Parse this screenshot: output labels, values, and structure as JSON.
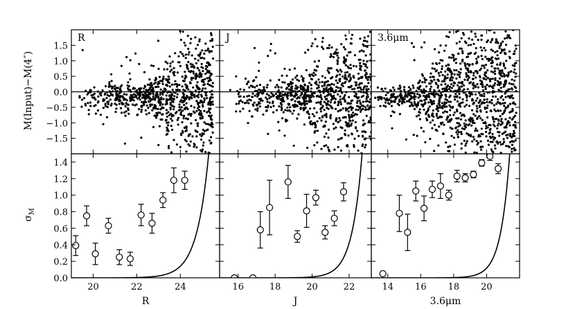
{
  "chart_data": {
    "type": "scatter",
    "top_row": {
      "ylabel": "M(Input)−M(4″)",
      "ylim": [
        -2.0,
        2.0
      ],
      "yticks": [
        "−1.5",
        "−1.0",
        "−0.5",
        "0.0",
        "0.5",
        "1.0",
        "1.5"
      ],
      "ytick_values": [
        -1.5,
        -1.0,
        -0.5,
        0.0,
        0.5,
        1.0,
        1.5
      ],
      "reference_line": 0.0
    },
    "bottom_row": {
      "ylabel": "σM",
      "ylim": [
        0.0,
        1.5
      ],
      "yticks": [
        "0.0",
        "0.2",
        "0.4",
        "0.6",
        "0.8",
        "1.0",
        "1.2",
        "1.4"
      ],
      "ytick_values": [
        0.0,
        0.2,
        0.4,
        0.6,
        0.8,
        1.0,
        1.2,
        1.4
      ]
    },
    "panels": [
      {
        "label": "R",
        "xlabel": "R",
        "xlim": [
          19.0,
          25.8
        ],
        "xticks": [
          "20",
          "22",
          "24"
        ],
        "xtick_values": [
          20,
          22,
          24
        ],
        "scatter_summary": {
          "points": 900,
          "x_range": [
            19.2,
            25.5
          ],
          "bright_spread": 0.25,
          "faint_onset": 22.5,
          "faint_spread": 1.0
        },
        "errorbars": [
          {
            "x": 19.2,
            "y": 0.39,
            "err": 0.12
          },
          {
            "x": 19.7,
            "y": 0.75,
            "err": 0.12
          },
          {
            "x": 20.1,
            "y": 0.29,
            "err": 0.13
          },
          {
            "x": 20.7,
            "y": 0.63,
            "err": 0.09
          },
          {
            "x": 21.2,
            "y": 0.25,
            "err": 0.09
          },
          {
            "x": 21.7,
            "y": 0.23,
            "err": 0.08
          },
          {
            "x": 22.2,
            "y": 0.76,
            "err": 0.13
          },
          {
            "x": 22.7,
            "y": 0.66,
            "err": 0.12
          },
          {
            "x": 23.2,
            "y": 0.94,
            "err": 0.09
          },
          {
            "x": 23.7,
            "y": 1.18,
            "err": 0.15
          },
          {
            "x": 24.2,
            "y": 1.18,
            "err": 0.11
          }
        ],
        "curve": {
          "x0": 25.4,
          "scale": 0.55,
          "amp": 1.8
        }
      },
      {
        "label": "J",
        "xlabel": "J",
        "xlim": [
          15.0,
          23.2
        ],
        "xticks": [
          "16",
          "18",
          "20",
          "22"
        ],
        "xtick_values": [
          16,
          18,
          20,
          22
        ],
        "scatter_summary": {
          "points": 900,
          "x_range": [
            15.5,
            23.2
          ],
          "bright_spread": 0.35,
          "faint_onset": 19.5,
          "faint_spread": 1.1
        },
        "errorbars": [
          {
            "x": 15.8,
            "y": 0.0,
            "err": 0.0
          },
          {
            "x": 16.8,
            "y": 0.0,
            "err": 0.0
          },
          {
            "x": 17.2,
            "y": 0.58,
            "err": 0.22
          },
          {
            "x": 17.7,
            "y": 0.85,
            "err": 0.33
          },
          {
            "x": 18.7,
            "y": 1.16,
            "err": 0.2
          },
          {
            "x": 19.2,
            "y": 0.5,
            "err": 0.07
          },
          {
            "x": 19.7,
            "y": 0.81,
            "err": 0.2
          },
          {
            "x": 20.2,
            "y": 0.97,
            "err": 0.09
          },
          {
            "x": 20.7,
            "y": 0.55,
            "err": 0.08
          },
          {
            "x": 21.2,
            "y": 0.72,
            "err": 0.09
          },
          {
            "x": 21.7,
            "y": 1.04,
            "err": 0.11
          }
        ],
        "curve": {
          "x0": 22.8,
          "scale": 0.55,
          "amp": 1.8
        }
      },
      {
        "label": "3.6μm",
        "xlabel": "3.6μm",
        "xlim": [
          13.0,
          22.0
        ],
        "xticks": [
          "14",
          "16",
          "18",
          "20"
        ],
        "xtick_values": [
          14,
          16,
          18,
          20
        ],
        "scatter_summary": {
          "points": 1200,
          "x_range": [
            13.2,
            21.8
          ],
          "bright_spread": 0.2,
          "faint_onset": 15.5,
          "faint_spread": 1.4
        },
        "errorbars": [
          {
            "x": 13.7,
            "y": 0.05,
            "err": 0.0
          },
          {
            "x": 14.7,
            "y": 0.78,
            "err": 0.22
          },
          {
            "x": 15.2,
            "y": 0.55,
            "err": 0.22
          },
          {
            "x": 15.7,
            "y": 1.05,
            "err": 0.12
          },
          {
            "x": 16.2,
            "y": 0.84,
            "err": 0.15
          },
          {
            "x": 16.7,
            "y": 1.07,
            "err": 0.1
          },
          {
            "x": 17.2,
            "y": 1.11,
            "err": 0.15
          },
          {
            "x": 17.7,
            "y": 1.0,
            "err": 0.06
          },
          {
            "x": 18.2,
            "y": 1.23,
            "err": 0.07
          },
          {
            "x": 18.7,
            "y": 1.21,
            "err": 0.05
          },
          {
            "x": 19.2,
            "y": 1.25,
            "err": 0.04
          },
          {
            "x": 19.7,
            "y": 1.39,
            "err": 0.04
          },
          {
            "x": 20.2,
            "y": 1.47,
            "err": 0.05
          },
          {
            "x": 20.7,
            "y": 1.32,
            "err": 0.06
          }
        ],
        "curve": {
          "x0": 21.5,
          "scale": 0.55,
          "amp": 1.8
        }
      }
    ]
  }
}
